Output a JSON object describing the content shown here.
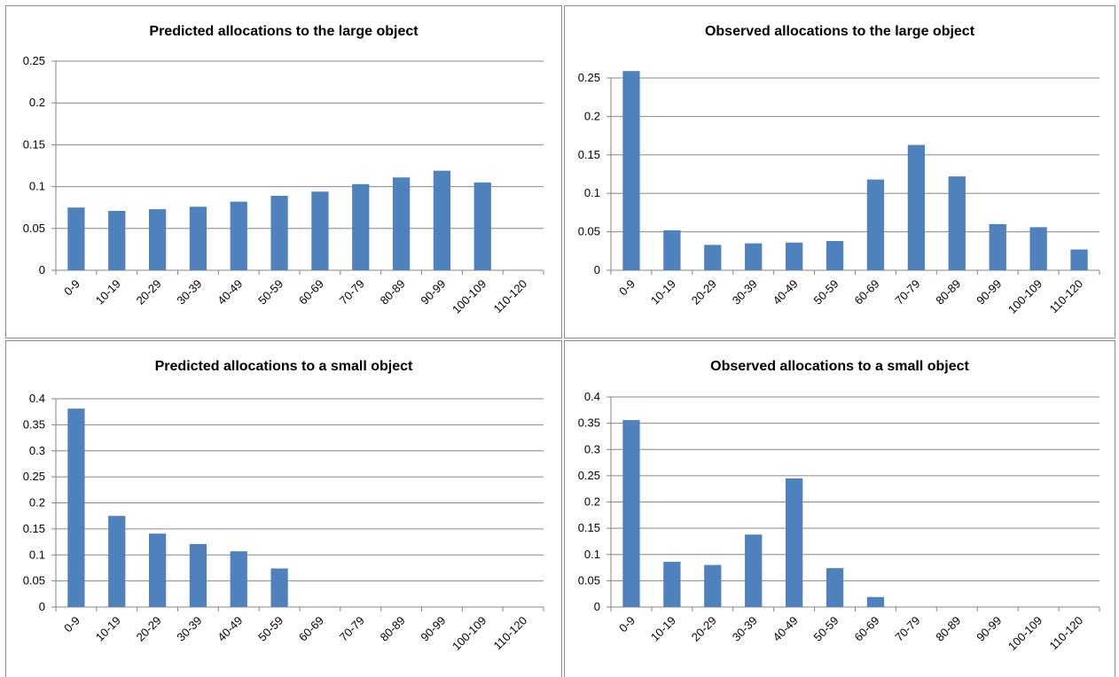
{
  "colors": {
    "bar": "#4f81bd",
    "grid": "#868686",
    "axis": "#868686"
  },
  "chart_data": [
    {
      "type": "bar",
      "title": "Predicted allocations to the large object",
      "categories": [
        "0-9",
        "10-19",
        "20-29",
        "30-39",
        "40-49",
        "50-59",
        "60-69",
        "70-79",
        "80-89",
        "90-99",
        "100-109",
        "110-120"
      ],
      "values": [
        0.075,
        0.071,
        0.073,
        0.076,
        0.082,
        0.089,
        0.094,
        0.103,
        0.111,
        0.119,
        0.105,
        0
      ],
      "ylim": [
        0,
        0.25
      ],
      "yticks": [
        0,
        0.05,
        0.1,
        0.15,
        0.2,
        0.25
      ],
      "ytick_labels": [
        "0",
        "0.05",
        "0.1",
        "0.15",
        "0.2",
        "0.25"
      ],
      "grid": true
    },
    {
      "type": "bar",
      "title": "Observed allocations  to the large object",
      "categories": [
        "0-9",
        "10-19",
        "20-29",
        "30-39",
        "40-49",
        "50-59",
        "60-69",
        "70-79",
        "80-89",
        "90-99",
        "100-109",
        "110-120"
      ],
      "values": [
        0.259,
        0.052,
        0.033,
        0.035,
        0.036,
        0.038,
        0.118,
        0.163,
        0.122,
        0.06,
        0.056,
        0.027
      ],
      "ylim": [
        0,
        0.25
      ],
      "yticks": [
        0,
        0.05,
        0.1,
        0.15,
        0.2,
        0.25
      ],
      "ytick_labels": [
        "0",
        "0.05",
        "0.1",
        "0.15",
        "0.2",
        "0.25"
      ],
      "grid": true
    },
    {
      "type": "bar",
      "title": "Predicted allocations to a small object",
      "categories": [
        "0-9",
        "10-19",
        "20-29",
        "30-39",
        "40-49",
        "50-59",
        "60-69",
        "70-79",
        "80-89",
        "90-99",
        "100-109",
        "110-120"
      ],
      "values": [
        0.381,
        0.175,
        0.141,
        0.121,
        0.107,
        0.074,
        0,
        0,
        0,
        0,
        0,
        0
      ],
      "ylim": [
        0,
        0.4
      ],
      "yticks": [
        0,
        0.05,
        0.1,
        0.15,
        0.2,
        0.25,
        0.3,
        0.35,
        0.4
      ],
      "ytick_labels": [
        "0",
        "0.05",
        "0.1",
        "0.15",
        "0.2",
        "0.25",
        "0.3",
        "0.35",
        "0.4"
      ],
      "grid": true
    },
    {
      "type": "bar",
      "title": "Observed allocations  to a small object",
      "categories": [
        "0-9",
        "10-19",
        "20-29",
        "30-39",
        "40-49",
        "50-59",
        "60-69",
        "70-79",
        "80-89",
        "90-99",
        "100-109",
        "110-120"
      ],
      "values": [
        0.356,
        0.086,
        0.08,
        0.138,
        0.245,
        0.074,
        0.019,
        0,
        0,
        0,
        0,
        0
      ],
      "ylim": [
        0,
        0.4
      ],
      "yticks": [
        0,
        0.05,
        0.1,
        0.15,
        0.2,
        0.25,
        0.3,
        0.35,
        0.4
      ],
      "ytick_labels": [
        "0",
        "0.05",
        "0.1",
        "0.15",
        "0.2",
        "0.25",
        "0.3",
        "0.35",
        "0.4"
      ],
      "grid": true
    }
  ]
}
